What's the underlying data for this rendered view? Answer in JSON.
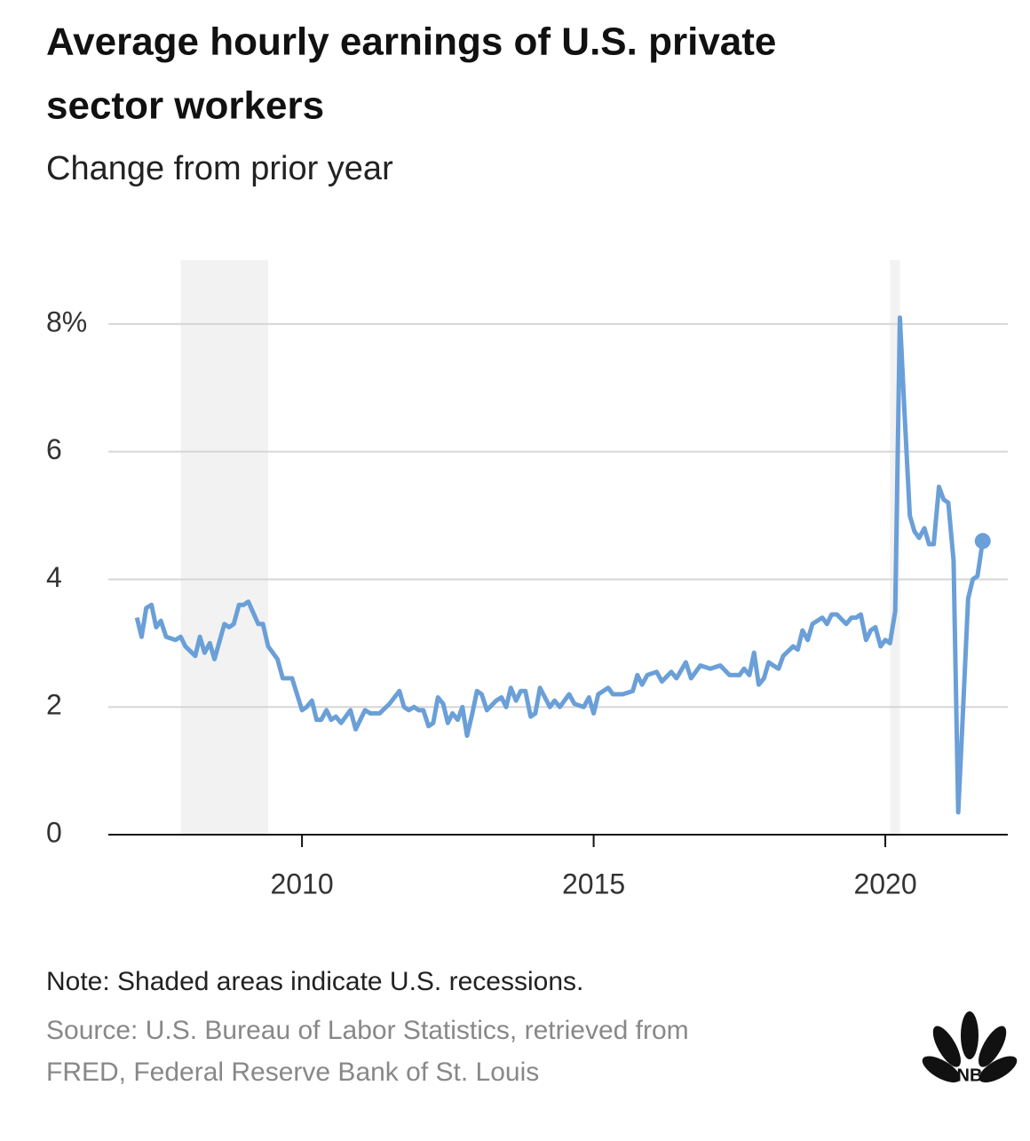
{
  "chart_data": {
    "type": "line",
    "title_lines": [
      "Average hourly earnings of U.S. private",
      "sector workers"
    ],
    "subtitle": "Change from prior year",
    "note": "Note: Shaded areas indicate U.S. recessions.",
    "source_lines": [
      "Source: U.S. Bureau of Labor Statistics, retrieved from",
      "FRED, Federal Reserve Bank of St. Louis"
    ],
    "logo": "CNBC",
    "xlim": [
      2006.68,
      2022.1
    ],
    "xticks": [
      2010,
      2015,
      2020
    ],
    "ylim": [
      0,
      9
    ],
    "yticks": [
      0,
      2,
      4,
      6,
      {
        "value": 8,
        "label": "8%"
      }
    ],
    "grid": true,
    "recessions": [
      [
        2007.92,
        2009.42
      ],
      [
        2020.08,
        2020.25
      ]
    ],
    "series": [
      {
        "color": "#6a9fd8",
        "x": [
          2007.17,
          2007.25,
          2007.33,
          2007.42,
          2007.5,
          2007.58,
          2007.67,
          2007.83,
          2007.92,
          2008.0,
          2008.17,
          2008.25,
          2008.33,
          2008.42,
          2008.5,
          2008.67,
          2008.75,
          2008.83,
          2008.92,
          2009.0,
          2009.08,
          2009.25,
          2009.33,
          2009.42,
          2009.58,
          2009.67,
          2009.83,
          2010.0,
          2010.08,
          2010.17,
          2010.25,
          2010.33,
          2010.42,
          2010.5,
          2010.58,
          2010.67,
          2010.83,
          2010.92,
          2011.0,
          2011.08,
          2011.17,
          2011.33,
          2011.5,
          2011.67,
          2011.75,
          2011.83,
          2011.92,
          2012.0,
          2012.08,
          2012.17,
          2012.25,
          2012.33,
          2012.42,
          2012.5,
          2012.58,
          2012.67,
          2012.75,
          2012.83,
          2012.92,
          2013.0,
          2013.08,
          2013.17,
          2013.33,
          2013.42,
          2013.5,
          2013.58,
          2013.67,
          2013.75,
          2013.83,
          2013.92,
          2014.0,
          2014.08,
          2014.25,
          2014.33,
          2014.42,
          2014.58,
          2014.67,
          2014.83,
          2014.92,
          2015.0,
          2015.08,
          2015.25,
          2015.33,
          2015.5,
          2015.67,
          2015.75,
          2015.83,
          2015.92,
          2016.08,
          2016.17,
          2016.33,
          2016.42,
          2016.58,
          2016.67,
          2016.83,
          2017.0,
          2017.17,
          2017.33,
          2017.5,
          2017.58,
          2017.67,
          2017.75,
          2017.83,
          2017.92,
          2018.0,
          2018.08,
          2018.17,
          2018.25,
          2018.42,
          2018.5,
          2018.58,
          2018.67,
          2018.75,
          2018.92,
          2019.0,
          2019.08,
          2019.17,
          2019.33,
          2019.42,
          2019.5,
          2019.58,
          2019.67,
          2019.75,
          2019.83,
          2019.92,
          2020.0,
          2020.08,
          2020.17,
          2020.25,
          2020.33,
          2020.42,
          2020.5,
          2020.58,
          2020.67,
          2020.75,
          2020.83,
          2020.92,
          2021.0,
          2021.08,
          2021.17,
          2021.25,
          2021.33,
          2021.42,
          2021.5,
          2021.58,
          2021.67
        ],
        "values": [
          3.4,
          3.1,
          3.55,
          3.6,
          3.25,
          3.35,
          3.1,
          3.05,
          3.1,
          2.95,
          2.8,
          3.1,
          2.85,
          3.0,
          2.75,
          3.3,
          3.25,
          3.3,
          3.6,
          3.6,
          3.65,
          3.3,
          3.3,
          2.95,
          2.75,
          2.45,
          2.45,
          1.95,
          2.0,
          2.1,
          1.8,
          1.8,
          1.95,
          1.8,
          1.85,
          1.75,
          1.95,
          1.65,
          1.8,
          1.95,
          1.9,
          1.9,
          2.05,
          2.25,
          2.0,
          1.95,
          2.0,
          1.95,
          1.95,
          1.7,
          1.75,
          2.15,
          2.05,
          1.75,
          1.9,
          1.8,
          2.0,
          1.55,
          1.9,
          2.25,
          2.2,
          1.95,
          2.1,
          2.15,
          2.0,
          2.3,
          2.1,
          2.25,
          2.25,
          1.85,
          1.9,
          2.3,
          2.0,
          2.1,
          2.0,
          2.2,
          2.05,
          2.0,
          2.15,
          1.9,
          2.2,
          2.3,
          2.2,
          2.2,
          2.25,
          2.5,
          2.35,
          2.5,
          2.55,
          2.4,
          2.55,
          2.45,
          2.7,
          2.45,
          2.65,
          2.6,
          2.65,
          2.5,
          2.5,
          2.6,
          2.5,
          2.85,
          2.35,
          2.45,
          2.7,
          2.65,
          2.6,
          2.8,
          2.95,
          2.9,
          3.2,
          3.05,
          3.3,
          3.4,
          3.3,
          3.45,
          3.45,
          3.3,
          3.4,
          3.4,
          3.45,
          3.05,
          3.2,
          3.25,
          2.95,
          3.05,
          3.0,
          3.5,
          8.1,
          6.6,
          5.0,
          4.75,
          4.65,
          4.8,
          4.55,
          4.55,
          5.45,
          5.25,
          5.2,
          4.3,
          0.35,
          1.9,
          3.7,
          4.0,
          4.05,
          4.6
        ]
      }
    ]
  }
}
